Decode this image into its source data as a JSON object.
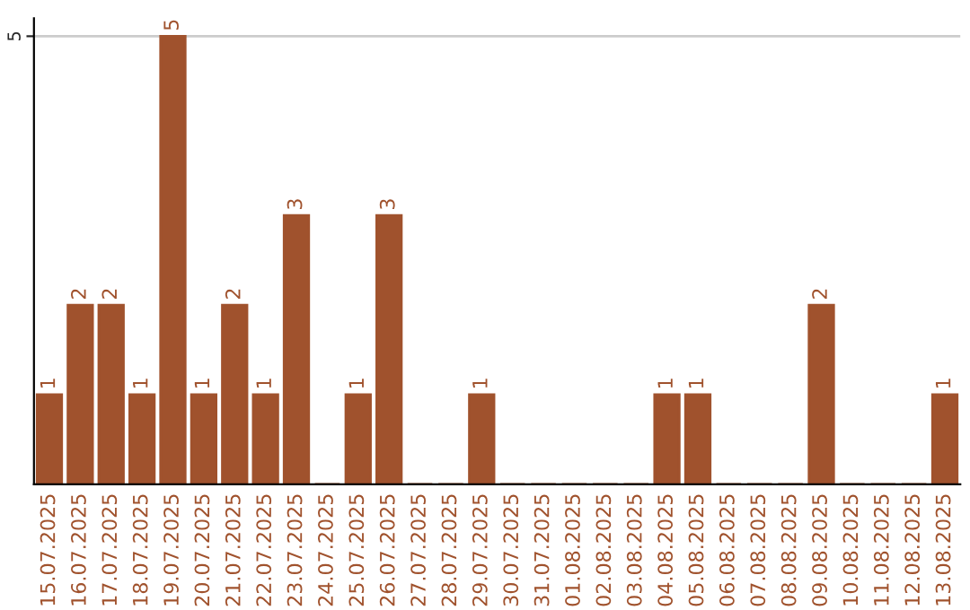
{
  "chart_data": {
    "type": "bar",
    "categories": [
      "15.07.2025",
      "16.07.2025",
      "17.07.2025",
      "18.07.2025",
      "19.07.2025",
      "20.07.2025",
      "21.07.2025",
      "22.07.2025",
      "23.07.2025",
      "24.07.2025",
      "25.07.2025",
      "26.07.2025",
      "27.07.2025",
      "28.07.2025",
      "29.07.2025",
      "30.07.2025",
      "31.07.2025",
      "01.08.2025",
      "02.08.2025",
      "03.08.2025",
      "04.08.2025",
      "05.08.2025",
      "06.08.2025",
      "07.08.2025",
      "08.08.2025",
      "09.08.2025",
      "10.08.2025",
      "11.08.2025",
      "12.08.2025",
      "13.08.2025"
    ],
    "values": [
      1,
      2,
      2,
      1,
      5,
      1,
      2,
      1,
      3,
      0,
      1,
      3,
      0,
      0,
      1,
      0,
      0,
      0,
      0,
      0,
      1,
      1,
      0,
      0,
      0,
      2,
      0,
      0,
      0,
      1
    ],
    "value_labels": [
      "1",
      "2",
      "2",
      "1",
      "5",
      "1",
      "2",
      "1",
      "3",
      null,
      "1",
      "3",
      null,
      null,
      "1",
      null,
      null,
      null,
      null,
      null,
      "1",
      "1",
      null,
      null,
      null,
      "2",
      null,
      null,
      null,
      "1"
    ],
    "color": "#a0522d",
    "ylim": [
      0,
      5.2
    ],
    "yticks": [
      5
    ],
    "grid": "y"
  }
}
